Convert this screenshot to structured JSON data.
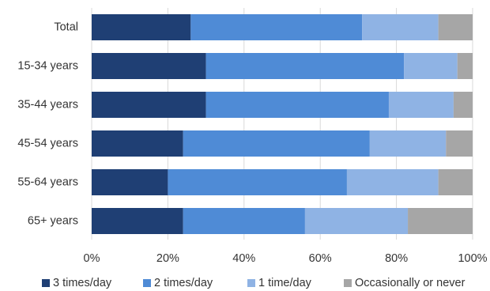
{
  "chart_data": {
    "type": "bar",
    "orientation": "horizontal",
    "stacked": true,
    "categories": [
      "Total",
      "15-34 years",
      "35-44 years",
      "45-54 years",
      "55-64 years",
      "65+ years"
    ],
    "series": [
      {
        "name": "3 times/day",
        "color": "#1f3f74",
        "values": [
          26,
          30,
          30,
          24,
          20,
          24
        ]
      },
      {
        "name": "2 times/day",
        "color": "#4f8bd6",
        "values": [
          45,
          52,
          48,
          49,
          47,
          32
        ]
      },
      {
        "name": "1 time/day",
        "color": "#8fb3e4",
        "values": [
          20,
          14,
          17,
          20,
          24,
          27
        ]
      },
      {
        "name": "Occasionally or never",
        "color": "#a6a6a6",
        "values": [
          9,
          4,
          5,
          7,
          9,
          17
        ]
      }
    ],
    "x_ticks": [
      "0%",
      "20%",
      "40%",
      "60%",
      "80%",
      "100%"
    ],
    "xlim": [
      0,
      100
    ],
    "grid": "vertical",
    "legend_position": "bottom",
    "title": "",
    "xlabel": "",
    "ylabel": ""
  }
}
